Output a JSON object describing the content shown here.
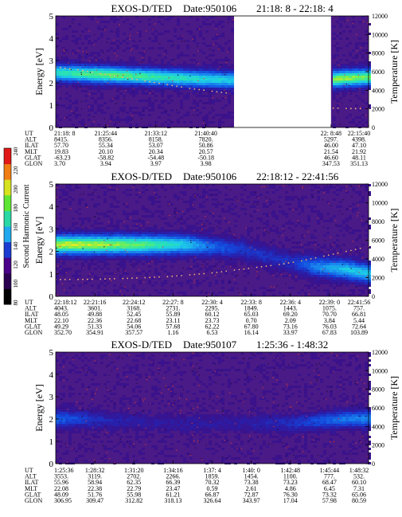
{
  "colorbar": {
    "label": "Second Harmonic Current",
    "ticks": [
      240,
      220,
      200,
      180,
      160,
      140,
      120,
      100,
      80
    ],
    "colors": [
      "#000000",
      "#2b0050",
      "#4a0088",
      "#1a3cd0",
      "#22a8ee",
      "#2ad8a6",
      "#5fe634",
      "#d6e21e",
      "#f07e14",
      "#e01818"
    ]
  },
  "chart_data": [
    {
      "type": "heatmap",
      "title": "EXOS-D/TED",
      "date_label": "Date:950106",
      "time_range": "21:18: 8 - 22:18: 4",
      "ylabel": "Energy [eV]",
      "y2label": "Temperature [K]",
      "ylim": [
        0,
        5
      ],
      "y2lim": [
        0,
        12000
      ],
      "yticks": [
        0,
        1,
        2,
        3,
        4,
        5
      ],
      "y2ticks": [
        0,
        2000,
        4000,
        6000,
        8000,
        10000,
        12000
      ],
      "data_gap": [
        0.57,
        0.88
      ],
      "band_center": [
        2.45,
        2.4,
        2.35,
        2.3,
        2.25,
        2.2,
        2.15,
        2.1,
        2.1,
        2.0,
        2.1,
        2.2,
        2.25
      ],
      "band_intensity": [
        0.7,
        0.8,
        0.85,
        0.8,
        0.75,
        0.7,
        0.65,
        0.6,
        0.5,
        0.45,
        0.85,
        0.9,
        0.85
      ],
      "temperature_trace": [
        6500,
        6200,
        5800,
        5400,
        5000,
        4600,
        4200,
        3900,
        3600,
        3400,
        3200,
        2200,
        2100,
        2050,
        2000
      ],
      "rows": [
        {
          "label": "UT",
          "values": [
            "21:18: 8",
            "21:25:44",
            "21:33:12",
            "21:40:40",
            "22: 8:48",
            "22:15:40"
          ]
        },
        {
          "label": "ALT",
          "values": [
            "8415.",
            "8356.",
            "8158.",
            "7820.",
            "5297.",
            "4398."
          ]
        },
        {
          "label": "ILAT",
          "values": [
            "57.70",
            "55.34",
            "53.07",
            "50.86",
            "46.00",
            "47.10"
          ]
        },
        {
          "label": "MLT",
          "values": [
            "19.83",
            "20.10",
            "20.34",
            "20.57",
            "21.54",
            "21.92"
          ]
        },
        {
          "label": "GLAT",
          "values": [
            "-63.23",
            "-58.82",
            "-54.48",
            "-50.18",
            "46.60",
            "48.11"
          ]
        },
        {
          "label": "GLON",
          "values": [
            "3.70",
            "3.94",
            "3.97",
            "3.98",
            "347.53",
            "351.13"
          ]
        }
      ],
      "column_fractions": [
        0.0,
        0.16,
        0.32,
        0.48,
        0.88,
        1.0
      ]
    },
    {
      "type": "heatmap",
      "title": "EXOS-D/TED",
      "date_label": "Date:950106",
      "time_range": "22:18:12 - 22:41:56",
      "ylabel": "Energy [eV]",
      "y2label": "Temperature [K]",
      "ylim": [
        0,
        5
      ],
      "y2lim": [
        0,
        12000
      ],
      "yticks": [
        0,
        1,
        2,
        3,
        4,
        5
      ],
      "y2ticks": [
        0,
        2000,
        4000,
        6000,
        8000,
        10000,
        12000
      ],
      "data_gap": null,
      "band_center": [
        2.3,
        2.3,
        2.3,
        2.3,
        2.3,
        2.3,
        2.2,
        2.1,
        1.8,
        1.5,
        1.3,
        1.2,
        1.0
      ],
      "band_intensity": [
        0.95,
        0.95,
        0.9,
        0.85,
        0.75,
        0.6,
        0.35,
        0.25,
        0.2,
        0.2,
        0.45,
        0.6,
        0.6
      ],
      "temperature_trace": [
        1800,
        1800,
        1850,
        1900,
        2000,
        2100,
        2300,
        2500,
        2800,
        3100,
        3400,
        3800,
        4300,
        4800,
        5300
      ],
      "rows": [
        {
          "label": "UT",
          "values": [
            "22:18:12",
            "22:21:16",
            "22:24:12",
            "22:27: 8",
            "22:30: 4",
            "22:33: 8",
            "22:36: 4",
            "22:39: 0",
            "22:41:56"
          ]
        },
        {
          "label": "ALT",
          "values": [
            "4043.",
            "3601.",
            "3168.",
            "2731.",
            "2295.",
            "1849.",
            "1443.",
            "1075.",
            "757."
          ]
        },
        {
          "label": "ILAT",
          "values": [
            "48.05",
            "49.88",
            "52.45",
            "55.89",
            "60.12",
            "65.03",
            "69.20",
            "70.70",
            "66.81"
          ]
        },
        {
          "label": "MLT",
          "values": [
            "22.10",
            "22.36",
            "22.68",
            "23.11",
            "23.73",
            "0.70",
            "2.09",
            "3.84",
            "5.44"
          ]
        },
        {
          "label": "GLAT",
          "values": [
            "49.29",
            "51.33",
            "54.06",
            "57.68",
            "62.22",
            "67.80",
            "73.16",
            "76.03",
            "72.64"
          ]
        },
        {
          "label": "GLON",
          "values": [
            "352.70",
            "354.91",
            "357.57",
            "1.16",
            "6.53",
            "16.14",
            "33.97",
            "67.83",
            "103.89"
          ]
        }
      ],
      "column_fractions": [
        0.0,
        0.125,
        0.25,
        0.375,
        0.5,
        0.625,
        0.75,
        0.875,
        1.0
      ]
    },
    {
      "type": "heatmap",
      "title": "EXOS-D/TED",
      "date_label": "Date:950107",
      "time_range": "1:25:36 - 1:48:32",
      "ylabel": "Energy [eV]",
      "y2label": "Temperature [K]",
      "ylim": [
        0,
        5
      ],
      "y2lim": [
        0,
        12000
      ],
      "yticks": [
        0,
        1,
        2,
        3,
        4,
        5
      ],
      "y2ticks": [
        0,
        2000,
        4000,
        6000,
        8000,
        10000,
        12000
      ],
      "data_gap": null,
      "band_center": [
        2.0,
        2.0,
        1.9,
        1.9,
        1.8,
        1.8,
        1.8,
        1.8,
        1.8,
        1.8,
        1.9,
        2.0,
        2.0
      ],
      "band_intensity": [
        0.35,
        0.25,
        0.15,
        0.12,
        0.1,
        0.1,
        0.1,
        0.1,
        0.15,
        0.2,
        0.3,
        0.4,
        0.45
      ],
      "temperature_trace": [],
      "rows": [
        {
          "label": "UT",
          "values": [
            "1:25:36",
            "1:28:32",
            "1:31:20",
            "1:34:16",
            "1:37: 4",
            "1:40: 0",
            "1:42:48",
            "1:45:44",
            "1:48:32"
          ]
        },
        {
          "label": "ALT",
          "values": [
            "3553.",
            "3119.",
            "2702.",
            "2266.",
            "1859.",
            "1454.",
            "1100.",
            "777.",
            "532."
          ]
        },
        {
          "label": "ILAT",
          "values": [
            "55.96",
            "58.94",
            "62.35",
            "66.39",
            "70.32",
            "73.38",
            "73.23",
            "68.47",
            "60.10"
          ]
        },
        {
          "label": "MLT",
          "values": [
            "22.08",
            "22.38",
            "22.79",
            "23.47",
            "0.59",
            "2.61",
            "4.86",
            "6.45",
            "7.31"
          ]
        },
        {
          "label": "GLAT",
          "values": [
            "48.09",
            "51.76",
            "55.98",
            "61.21",
            "66.87",
            "72.87",
            "76.30",
            "73.32",
            "65.06"
          ]
        },
        {
          "label": "GLON",
          "values": [
            "306.95",
            "309.47",
            "312.82",
            "318.13",
            "326.64",
            "343.97",
            "17.04",
            "57.98",
            "80.59"
          ]
        }
      ],
      "column_fractions": [
        0.0,
        0.125,
        0.25,
        0.375,
        0.5,
        0.625,
        0.75,
        0.875,
        1.0
      ]
    }
  ]
}
